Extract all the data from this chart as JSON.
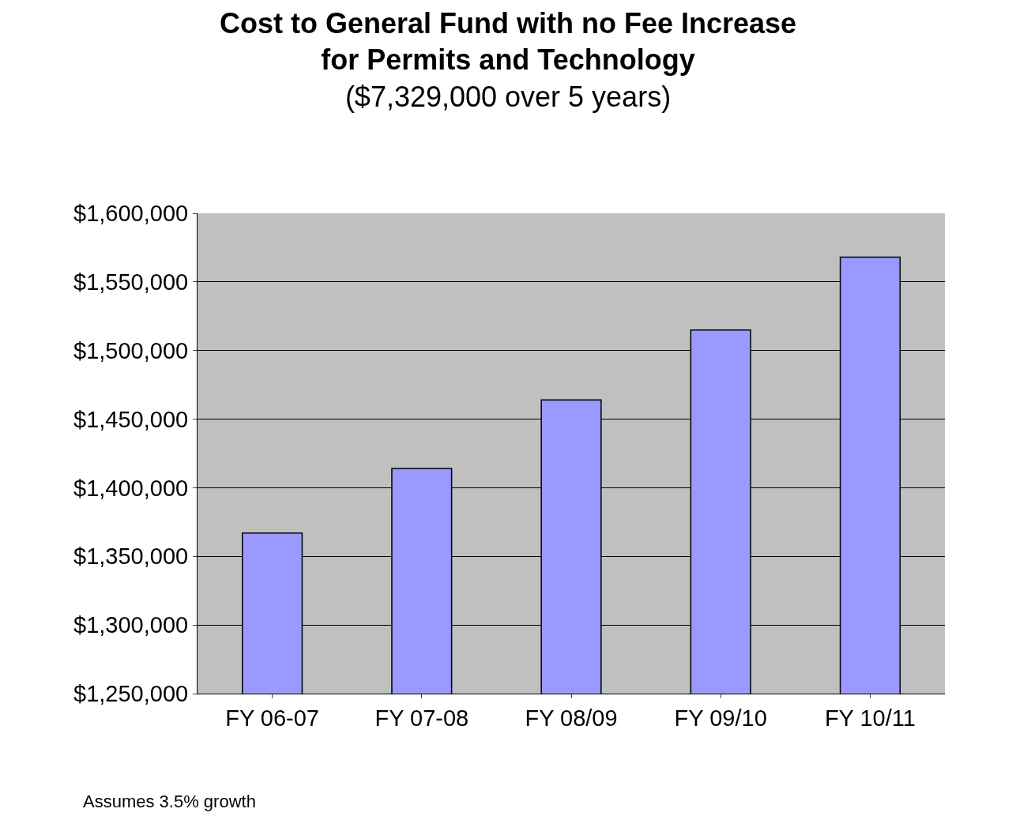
{
  "chart_data": {
    "type": "bar",
    "title": "Cost to General Fund with no Fee Increase for Permits and Technology",
    "subtitle": "($7,329,000 over 5 years)",
    "categories": [
      "FY 06-07",
      "FY 07-08",
      "FY 08/09",
      "FY 09/10",
      "FY 10/11"
    ],
    "values": [
      1367000,
      1414000,
      1464000,
      1515000,
      1568000
    ],
    "color": "#9999ff",
    "ylim": [
      1250000,
      1600000
    ],
    "yticks": [
      {
        "value": 1250000,
        "label": "$1,250,000"
      },
      {
        "value": 1300000,
        "label": "$1,300,000"
      },
      {
        "value": 1350000,
        "label": "$1,350,000"
      },
      {
        "value": 1400000,
        "label": "$1,400,000"
      },
      {
        "value": 1450000,
        "label": "$1,450,000"
      },
      {
        "value": 1500000,
        "label": "$1,500,000"
      },
      {
        "value": 1550000,
        "label": "$1,550,000"
      },
      {
        "value": 1600000,
        "label": "$1,600,000"
      }
    ],
    "grid": "y",
    "annotations": [
      "Assumes 3.5% growth"
    ]
  }
}
